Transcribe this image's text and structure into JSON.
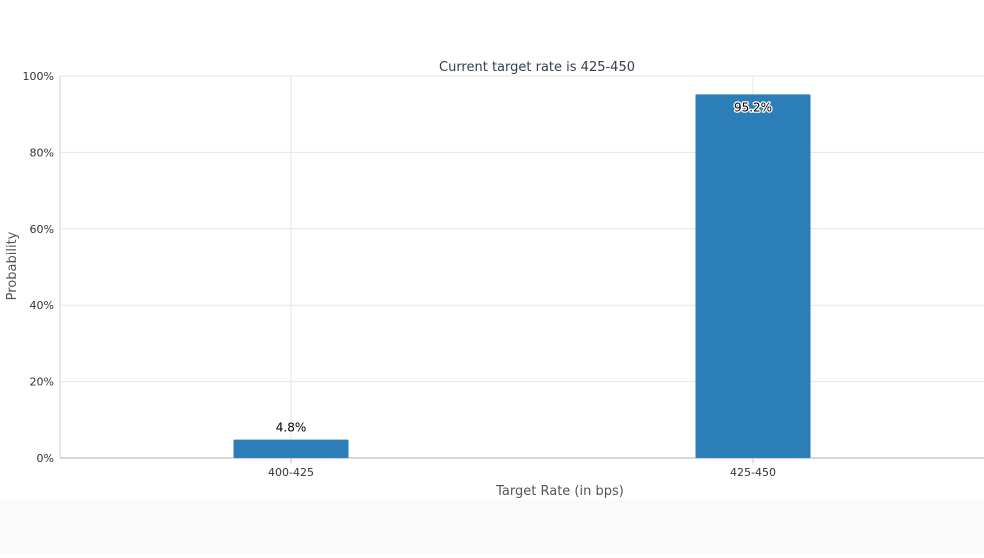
{
  "chart_data": {
    "type": "bar",
    "title": "Current target rate is 425-450",
    "xlabel": "Target Rate (in bps)",
    "ylabel": "Probability",
    "categories": [
      "400-425",
      "425-450"
    ],
    "values": [
      4.8,
      95.2
    ],
    "data_labels": [
      "4.8%",
      "95.2%"
    ],
    "ylim": [
      0,
      100
    ],
    "yticks": [
      0,
      20,
      40,
      60,
      80,
      100
    ],
    "ytick_labels": [
      "0%",
      "20%",
      "40%",
      "60%",
      "80%",
      "100%"
    ],
    "grid": true,
    "legend": "none",
    "bar_color": "#2b7eb8",
    "grid_color": "#e6e6e6",
    "axis_color": "#bfbfbf",
    "title_color": "#333f4f",
    "label_color": "#555555"
  }
}
